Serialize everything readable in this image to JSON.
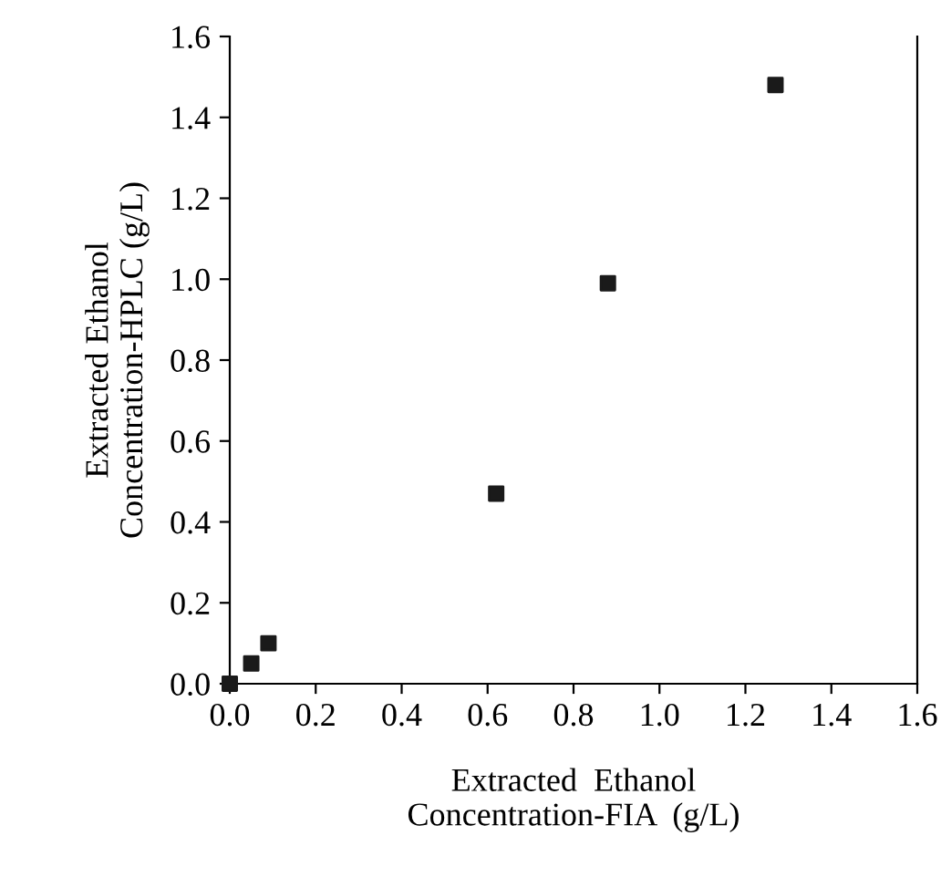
{
  "chart_data": {
    "type": "scatter",
    "xlabel": "Extracted  Ethanol\nConcentration-FIA  (g/L)",
    "ylabel": "Extracted Ethanol\nConcentration-HPLC (g/L)",
    "x": [
      0.0,
      0.05,
      0.09,
      0.62,
      0.88,
      1.27
    ],
    "values": [
      0.0,
      0.05,
      0.1,
      0.47,
      0.99,
      1.48
    ],
    "color": "#1a1a1a",
    "marker": "square",
    "xlim": [
      0,
      1.6
    ],
    "ylim": [
      0,
      1.6
    ],
    "xticks": [
      {
        "value": 0,
        "label": "0.0"
      },
      0.2,
      0.4,
      0.6,
      0.8,
      {
        "value": 1,
        "label": "1.0"
      },
      1.2,
      1.4,
      1.6
    ],
    "yticks": [
      {
        "value": 0,
        "label": "0.0"
      },
      0.2,
      0.4,
      0.6,
      0.8,
      {
        "value": 1,
        "label": "1.0"
      },
      1.2,
      1.4,
      1.6
    ],
    "grid": false,
    "legend": false
  }
}
